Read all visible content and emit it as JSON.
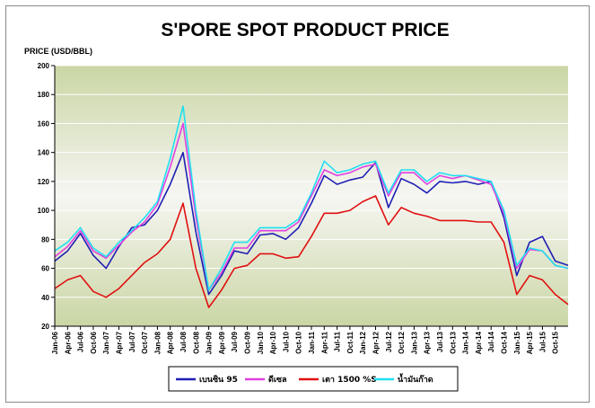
{
  "chart_data": {
    "type": "line",
    "title": "S'PORE SPOT PRODUCT PRICE",
    "ylabel": "PRICE (USD/BBL)",
    "xlabel": "",
    "ylim": [
      20,
      200
    ],
    "yticks": [
      20,
      40,
      60,
      80,
      100,
      120,
      140,
      160,
      180,
      200
    ],
    "x_tick_labels": [
      "Jan-06",
      "Apr-06",
      "Jul-06",
      "Oct-06",
      "Jan-07",
      "Apr-07",
      "Jul-07",
      "Oct-07",
      "Jan-08",
      "Apr-08",
      "Jul-08",
      "Oct-08",
      "Jan-09",
      "Apr-09",
      "Jul-09",
      "Oct-09",
      "Jan-10",
      "Apr-10",
      "Jul-10",
      "Oct-10",
      "Jan-11",
      "Apr-11",
      "Jul-11",
      "Oct-11",
      "Jan-12",
      "Apr-12",
      "Jul-12",
      "Oct-12",
      "Jan-13",
      "Apr-13",
      "Jul-13",
      "Oct-13",
      "Jan-14",
      "Apr-14",
      "Jul-14",
      "Oct-14",
      "Jan-15",
      "Apr-15",
      "Jul-15",
      "Oct-15"
    ],
    "legend_position": "bottom",
    "x": [
      "Jan-06",
      "Apr-06",
      "Jul-06",
      "Oct-06",
      "Jan-07",
      "Apr-07",
      "Jul-07",
      "Oct-07",
      "Jan-08",
      "Apr-08",
      "Jul-08",
      "Oct-08",
      "Jan-09",
      "Apr-09",
      "Jul-09",
      "Oct-09",
      "Jan-10",
      "Apr-10",
      "Jul-10",
      "Oct-10",
      "Jan-11",
      "Apr-11",
      "Jul-11",
      "Oct-11",
      "Jan-12",
      "Apr-12",
      "Jul-12",
      "Oct-12",
      "Jan-13",
      "Apr-13",
      "Jul-13",
      "Oct-13",
      "Jan-14",
      "Apr-14",
      "Jul-14",
      "Oct-14",
      "Jan-15",
      "Apr-15",
      "Jul-15",
      "Oct-15",
      "Dec-15"
    ],
    "series": [
      {
        "name": "เบนซิน 95",
        "color": "#1f1fb4",
        "values": [
          65,
          72,
          84,
          69,
          60,
          75,
          88,
          90,
          100,
          118,
          140,
          85,
          42,
          55,
          72,
          70,
          83,
          84,
          80,
          88,
          105,
          124,
          118,
          121,
          123,
          133,
          102,
          122,
          118,
          112,
          120,
          119,
          120,
          118,
          120,
          95,
          55,
          78,
          82,
          65,
          62
        ]
      },
      {
        "name": "ดีเซล",
        "color": "#e040e0",
        "values": [
          68,
          75,
          86,
          72,
          67,
          76,
          85,
          92,
          104,
          130,
          160,
          95,
          45,
          57,
          74,
          74,
          86,
          86,
          86,
          92,
          110,
          128,
          124,
          126,
          130,
          132,
          110,
          126,
          126,
          118,
          124,
          122,
          124,
          121,
          118,
          98,
          60,
          73,
          72,
          62,
          60
        ]
      },
      {
        "name": "เตา 1500 %S",
        "color": "#e01010",
        "values": [
          46,
          52,
          55,
          44,
          40,
          46,
          55,
          64,
          70,
          80,
          105,
          60,
          33,
          45,
          60,
          62,
          70,
          70,
          67,
          68,
          82,
          98,
          98,
          100,
          106,
          110,
          90,
          102,
          98,
          96,
          93,
          93,
          93,
          92,
          92,
          78,
          42,
          55,
          52,
          42,
          35
        ]
      },
      {
        "name": "น้ำมันก๊าด",
        "color": "#20e0f0",
        "values": [
          72,
          78,
          88,
          74,
          68,
          78,
          86,
          95,
          106,
          136,
          172,
          100,
          45,
          60,
          78,
          78,
          88,
          88,
          88,
          94,
          112,
          134,
          126,
          128,
          132,
          134,
          112,
          128,
          128,
          120,
          126,
          124,
          124,
          122,
          120,
          100,
          62,
          74,
          72,
          62,
          60
        ]
      }
    ]
  }
}
